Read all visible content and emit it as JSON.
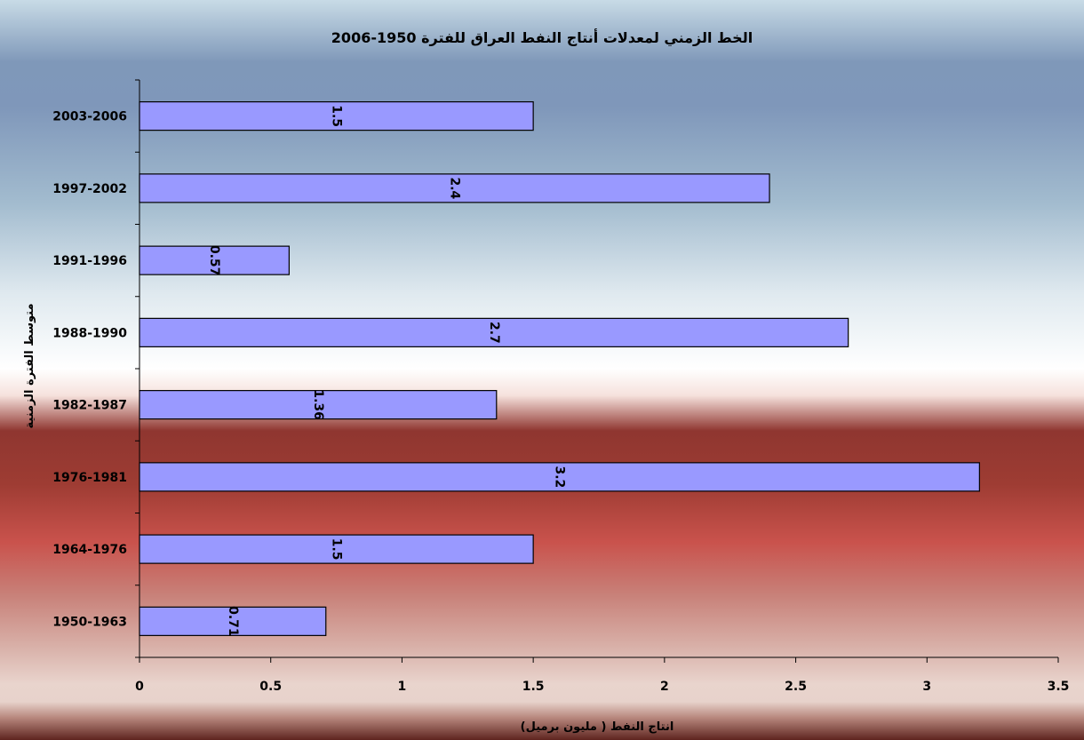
{
  "chart_data": {
    "type": "bar",
    "orientation": "horizontal",
    "title": "الخط الزمني لمعدلات أنتاج النفط العراق للفترة 1950-2006",
    "xlabel": "انتاج النفط ( مليون برميل)",
    "ylabel": "متوسط الفترة الزمنية",
    "categories": [
      "1950-1963",
      "1964-1976",
      "1976-1981",
      "1982-1987",
      "1988-1990",
      "1991-1996",
      "1997-2002",
      "2003-2006"
    ],
    "values": [
      0.71,
      1.5,
      3.2,
      1.36,
      2.7,
      0.57,
      2.4,
      1.5
    ],
    "xlim": [
      0,
      3.5
    ],
    "xticks": [
      0,
      0.5,
      1,
      1.5,
      2,
      2.5,
      3,
      3.5
    ],
    "xtick_labels": [
      "0",
      "0.5",
      "1",
      "1.5",
      "2",
      "2.5",
      "3",
      "3.5"
    ],
    "data_labels": [
      "0.71",
      "1.5",
      "3.2",
      "1.36",
      "2.7",
      "0.57",
      "2.4",
      "1.5"
    ],
    "bar_color": "#9999ff",
    "bar_edge_color": "#000000",
    "grid": false,
    "legend": "none"
  }
}
